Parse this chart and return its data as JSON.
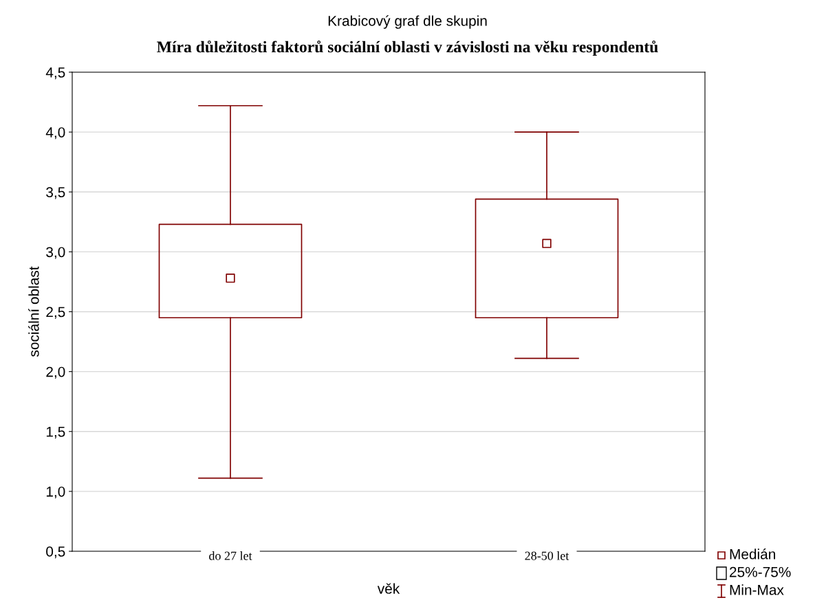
{
  "chart_data": {
    "type": "box",
    "subtitle": "Krabicový graf dle skupin",
    "title": "Míra důležitosti faktorů sociální oblasti v závislosti na věku respondentů",
    "xlabel": "věk",
    "ylabel": "sociální oblast",
    "categories": [
      "do 27 let",
      "28-50 let"
    ],
    "series": [
      {
        "color": "#800000",
        "boxes": [
          {
            "low": 1.11,
            "q1": 2.45,
            "median": 2.78,
            "q3": 3.23,
            "high": 4.22
          },
          {
            "low": 2.11,
            "q1": 2.45,
            "median": 3.07,
            "q3": 3.44,
            "high": 4.0
          }
        ]
      }
    ],
    "ylim": [
      0.5,
      4.5
    ],
    "yticks": [
      {
        "value": 0.5,
        "label": "0,5"
      },
      {
        "value": 1.0,
        "label": "1,0"
      },
      {
        "value": 1.5,
        "label": "1,5"
      },
      {
        "value": 2.0,
        "label": "2,0"
      },
      {
        "value": 2.5,
        "label": "2,5"
      },
      {
        "value": 3.0,
        "label": "3,0"
      },
      {
        "value": 3.5,
        "label": "3,5"
      },
      {
        "value": 4.0,
        "label": "4,0"
      },
      {
        "value": 4.5,
        "label": "4,5"
      }
    ],
    "grid": "y",
    "marker": "square",
    "annotations": [
      "Medián",
      "25%-75%",
      "Min-Max"
    ]
  }
}
